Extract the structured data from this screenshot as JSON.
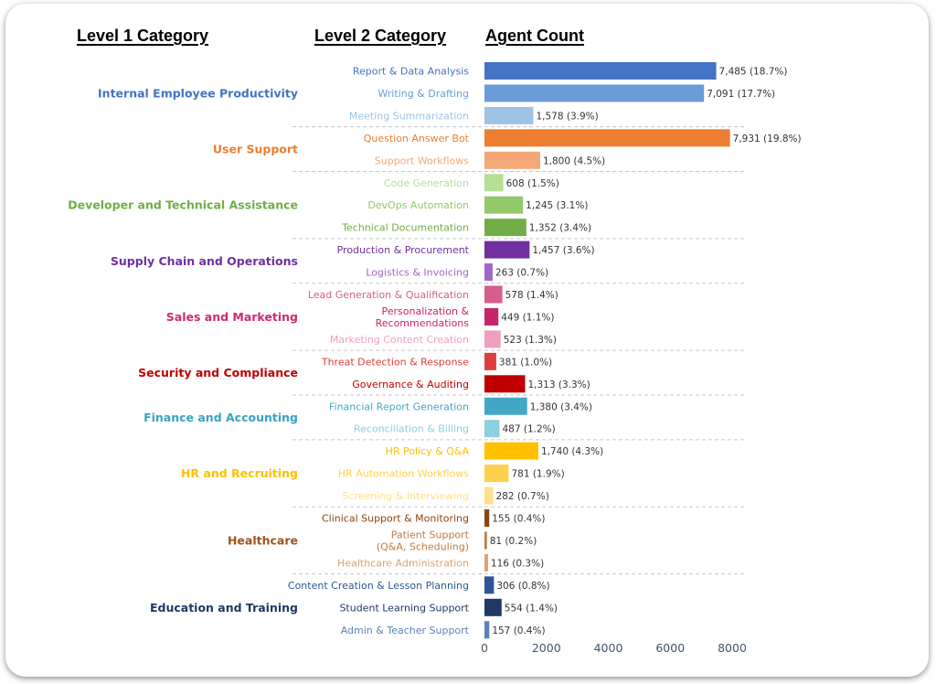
{
  "headers": {
    "level1": "Level 1 Category",
    "level2": "Level 2 Category",
    "count": "Agent Count"
  },
  "chart_data": {
    "type": "bar",
    "orientation": "horizontal",
    "grid": false,
    "xlim": [
      0,
      8000
    ],
    "xticks": [
      "0",
      "2000",
      "4000",
      "6000",
      "8000"
    ],
    "groups": [
      {
        "name": "Internal Employee Productivity",
        "color": "#4472c4",
        "items": [
          {
            "label": "Report & Data Analysis",
            "value": 7485,
            "value_label": "7,485 (18.7%)",
            "color": "#4472c4"
          },
          {
            "label": "Writing & Drafting",
            "value": 7091,
            "value_label": "7,091 (17.7%)",
            "color": "#6a9bd8"
          },
          {
            "label": "Meeting Summarization",
            "value": 1578,
            "value_label": "1,578 (3.9%)",
            "color": "#9dc3e6"
          }
        ]
      },
      {
        "name": "User Support",
        "color": "#ed7d31",
        "items": [
          {
            "label": "Question Answer Bot",
            "value": 7931,
            "value_label": "7,931 (19.8%)",
            "color": "#ed7d31"
          },
          {
            "label": "Support Workflows",
            "value": 1800,
            "value_label": "1,800 (4.5%)",
            "color": "#f4a876"
          }
        ]
      },
      {
        "name": "Developer and Technical Assistance",
        "color": "#70ad47",
        "items": [
          {
            "label": "Code Generation",
            "value": 608,
            "value_label": "608 (1.5%)",
            "color": "#b5df94"
          },
          {
            "label": "DevOps Automation",
            "value": 1245,
            "value_label": "1,245 (3.1%)",
            "color": "#92c96a"
          },
          {
            "label": "Technical Documentation",
            "value": 1352,
            "value_label": "1,352 (3.4%)",
            "color": "#70ad47"
          }
        ]
      },
      {
        "name": "Supply Chain and Operations",
        "color": "#7030a0",
        "items": [
          {
            "label": "Production & Procurement",
            "value": 1457,
            "value_label": "1,457 (3.6%)",
            "color": "#7030a0"
          },
          {
            "label": "Logistics & Invoicing",
            "value": 263,
            "value_label": "263 (0.7%)",
            "color": "#a066c8"
          }
        ]
      },
      {
        "name": "Sales and Marketing",
        "color": "#cc2b6e",
        "items": [
          {
            "label": "Lead Generation & Qualification",
            "value": 578,
            "value_label": "578 (1.4%)",
            "color": "#d95c8e"
          },
          {
            "label": [
              "Personalization &",
              "Recommendations"
            ],
            "value": 449,
            "value_label": "449 (1.1%)",
            "color": "#c8246b"
          },
          {
            "label": "Marketing Content Creation",
            "value": 523,
            "value_label": "523 (1.3%)",
            "color": "#ee9fc0"
          }
        ]
      },
      {
        "name": "Security and Compliance",
        "color": "#c00000",
        "items": [
          {
            "label": "Threat Detection & Response",
            "value": 381,
            "value_label": "381 (1.0%)",
            "color": "#d9403c"
          },
          {
            "label": "Governance & Auditing",
            "value": 1313,
            "value_label": "1,313 (3.3%)",
            "color": "#c00000"
          }
        ]
      },
      {
        "name": "Finance and Accounting",
        "color": "#3aa1c1",
        "items": [
          {
            "label": "Financial Report Generation",
            "value": 1380,
            "value_label": "1,380 (3.4%)",
            "color": "#45a7c6"
          },
          {
            "label": "Reconciliation & Billing",
            "value": 487,
            "value_label": "487 (1.2%)",
            "color": "#8ccfe0"
          }
        ]
      },
      {
        "name": "HR and Recruiting",
        "color": "#ffc000",
        "items": [
          {
            "label": "HR Policy & Q&A",
            "value": 1740,
            "value_label": "1,740 (4.3%)",
            "color": "#ffc000"
          },
          {
            "label": "HR Automation Workflows",
            "value": 781,
            "value_label": "781 (1.9%)",
            "color": "#ffd04d"
          },
          {
            "label": "Screening & Interviewing",
            "value": 282,
            "value_label": "282 (0.7%)",
            "color": "#ffe08a"
          }
        ]
      },
      {
        "name": "Healthcare",
        "color": "#a0521b",
        "items": [
          {
            "label": "Clinical Support & Monitoring",
            "value": 155,
            "value_label": "155 (0.4%)",
            "color": "#8b4513"
          },
          {
            "label": [
              "Patient Support",
              "(Q&A, Scheduling)"
            ],
            "value": 81,
            "value_label": "81 (0.2%)",
            "color": "#c27a3e"
          },
          {
            "label": "Healthcare Administration",
            "value": 116,
            "value_label": "116 (0.3%)",
            "color": "#e0a070"
          }
        ]
      },
      {
        "name": "Education and Training",
        "color": "#1f3864",
        "items": [
          {
            "label": "Content Creation & Lesson Planning",
            "value": 306,
            "value_label": "306 (0.8%)",
            "color": "#2e5597"
          },
          {
            "label": "Student Learning Support",
            "value": 554,
            "value_label": "554 (1.4%)",
            "color": "#1f3864"
          },
          {
            "label": "Admin & Teacher Support",
            "value": 157,
            "value_label": "157 (0.4%)",
            "color": "#5a83b8"
          }
        ]
      }
    ]
  }
}
